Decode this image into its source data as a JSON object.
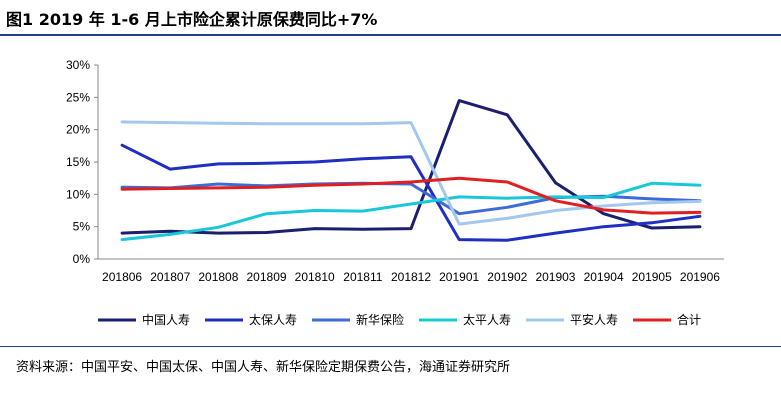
{
  "header": {
    "title": "图1  2019 年 1-6 月上市险企累计原保费同比+7%"
  },
  "source": {
    "text": "资料来源：中国平安、中国太保、中国人寿、新华保险定期保费公告，海通证券研究所"
  },
  "chart_data": {
    "type": "line",
    "title": "",
    "xlabel": "",
    "ylabel": "",
    "categories": [
      "201806",
      "201807",
      "201808",
      "201809",
      "201810",
      "201811",
      "201812",
      "201901",
      "201902",
      "201903",
      "201904",
      "201905",
      "201906"
    ],
    "ylim": [
      0,
      30
    ],
    "yticks": [
      "0%",
      "5%",
      "10%",
      "15%",
      "20%",
      "25%",
      "30%"
    ],
    "y_unit": "%",
    "grid": false,
    "legend_position": "bottom",
    "series": [
      {
        "name": "中国人寿",
        "color": "#1b1f6e",
        "values": [
          4.0,
          4.3,
          4.0,
          4.1,
          4.7,
          4.6,
          4.7,
          24.5,
          22.3,
          11.8,
          7.0,
          4.8,
          5.0
        ]
      },
      {
        "name": "太保人寿",
        "color": "#1f2fc2",
        "values": [
          17.6,
          13.9,
          14.7,
          14.8,
          15.0,
          15.5,
          15.8,
          3.0,
          2.9,
          4.0,
          5.0,
          5.6,
          6.6
        ]
      },
      {
        "name": "新华保险",
        "color": "#3d6cd8",
        "values": [
          11.1,
          11.0,
          11.6,
          11.3,
          11.6,
          11.7,
          11.6,
          7.0,
          8.0,
          9.5,
          9.7,
          9.3,
          9.0
        ]
      },
      {
        "name": "太平人寿",
        "color": "#18c8d8",
        "values": [
          3.0,
          3.8,
          4.9,
          7.0,
          7.5,
          7.4,
          8.5,
          9.6,
          9.4,
          9.6,
          9.5,
          11.7,
          11.4
        ]
      },
      {
        "name": "平安人寿",
        "color": "#a3c8ee",
        "values": [
          21.2,
          21.1,
          21.0,
          20.9,
          20.9,
          20.9,
          21.1,
          5.4,
          6.3,
          7.5,
          8.2,
          8.7,
          8.9
        ]
      },
      {
        "name": "合计",
        "color": "#e02020",
        "values": [
          10.8,
          10.9,
          11.0,
          11.1,
          11.4,
          11.6,
          11.9,
          12.5,
          11.9,
          9.0,
          7.6,
          7.1,
          7.2
        ]
      }
    ]
  }
}
